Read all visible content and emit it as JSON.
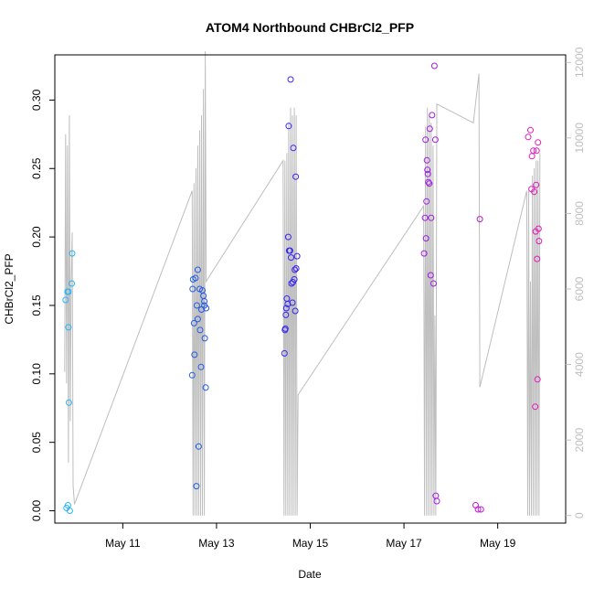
{
  "chart_data": {
    "type": "scatter",
    "title": "ATOM4 Northbound CHBrCl2_PFP",
    "xlabel": "Date",
    "ylabel": "CHBrCl2_PFP",
    "x_ticks": [
      {
        "day": 11,
        "label": "May 11"
      },
      {
        "day": 13,
        "label": "May 13"
      },
      {
        "day": 15,
        "label": "May 15"
      },
      {
        "day": 17,
        "label": "May 17"
      },
      {
        "day": 19,
        "label": "May 19"
      }
    ],
    "xlim": [
      9.55,
      20.45
    ],
    "ylim": [
      -0.009,
      0.333
    ],
    "y_ticks": [
      0.0,
      0.05,
      0.1,
      0.15,
      0.2,
      0.25,
      0.3
    ],
    "y_tick_labels": [
      "0.00",
      "0.05",
      "0.10",
      "0.15",
      "0.20",
      "0.25",
      "0.30"
    ],
    "secondary_axis": {
      "label": "",
      "ylim": [
        -200,
        12200
      ],
      "ticks": [
        0,
        2000,
        4000,
        6000,
        8000,
        10000,
        12000
      ],
      "tick_labels": [
        "0",
        "2000",
        "4000",
        "6000",
        "8000",
        "10000",
        "12000"
      ],
      "color": "#bebebe"
    },
    "colors": {
      "line": "#bebebe",
      "point_scale": [
        "#29b6f6",
        "#1e63e6",
        "#3a1ff0",
        "#9b1ce8",
        "#e51ab9"
      ]
    },
    "points": [
      [
        9.78,
        0.154
      ],
      [
        9.82,
        0.16
      ],
      [
        9.84,
        0.134
      ],
      [
        9.85,
        0.079
      ],
      [
        9.83,
        0.004
      ],
      [
        9.8,
        0.002
      ],
      [
        9.87,
        0.0
      ],
      [
        9.92,
        0.188
      ],
      [
        9.91,
        0.166
      ],
      [
        9.84,
        0.16
      ],
      [
        12.48,
        0.099
      ],
      [
        12.49,
        0.162
      ],
      [
        12.5,
        0.169
      ],
      [
        12.52,
        0.137
      ],
      [
        12.53,
        0.114
      ],
      [
        12.55,
        0.17
      ],
      [
        12.57,
        0.018
      ],
      [
        12.58,
        0.15
      ],
      [
        12.6,
        0.176
      ],
      [
        12.6,
        0.14
      ],
      [
        12.62,
        0.047
      ],
      [
        12.64,
        0.162
      ],
      [
        12.65,
        0.132
      ],
      [
        12.67,
        0.105
      ],
      [
        12.68,
        0.147
      ],
      [
        12.7,
        0.161
      ],
      [
        12.72,
        0.157
      ],
      [
        12.74,
        0.153
      ],
      [
        12.75,
        0.126
      ],
      [
        12.77,
        0.09
      ],
      [
        12.78,
        0.148
      ],
      [
        12.74,
        0.15
      ],
      [
        14.45,
        0.115
      ],
      [
        14.46,
        0.132
      ],
      [
        14.47,
        0.133
      ],
      [
        14.48,
        0.143
      ],
      [
        14.49,
        0.148
      ],
      [
        14.5,
        0.155
      ],
      [
        14.52,
        0.151
      ],
      [
        14.53,
        0.2
      ],
      [
        14.54,
        0.281
      ],
      [
        14.55,
        0.19
      ],
      [
        14.57,
        0.19
      ],
      [
        14.58,
        0.315
      ],
      [
        14.59,
        0.185
      ],
      [
        14.6,
        0.166
      ],
      [
        14.62,
        0.152
      ],
      [
        14.63,
        0.167
      ],
      [
        14.64,
        0.265
      ],
      [
        14.66,
        0.169
      ],
      [
        14.67,
        0.176
      ],
      [
        14.68,
        0.146
      ],
      [
        14.69,
        0.244
      ],
      [
        14.7,
        0.177
      ],
      [
        14.72,
        0.186
      ],
      [
        17.43,
        0.188
      ],
      [
        17.45,
        0.214
      ],
      [
        17.46,
        0.271
      ],
      [
        17.47,
        0.199
      ],
      [
        17.48,
        0.226
      ],
      [
        17.49,
        0.256
      ],
      [
        17.5,
        0.249
      ],
      [
        17.51,
        0.246
      ],
      [
        17.52,
        0.24
      ],
      [
        17.54,
        0.239
      ],
      [
        17.55,
        0.279
      ],
      [
        17.57,
        0.172
      ],
      [
        17.58,
        0.214
      ],
      [
        17.6,
        0.289
      ],
      [
        17.63,
        0.166
      ],
      [
        17.65,
        0.325
      ],
      [
        17.67,
        0.271
      ],
      [
        17.68,
        0.011
      ],
      [
        17.7,
        0.007
      ],
      [
        18.53,
        0.004
      ],
      [
        18.58,
        0.001
      ],
      [
        18.62,
        0.213
      ],
      [
        18.64,
        0.001
      ],
      [
        19.65,
        0.273
      ],
      [
        19.7,
        0.278
      ],
      [
        19.72,
        0.235
      ],
      [
        19.73,
        0.259
      ],
      [
        19.76,
        0.263
      ],
      [
        19.78,
        0.233
      ],
      [
        19.8,
        0.076
      ],
      [
        19.81,
        0.204
      ],
      [
        19.82,
        0.238
      ],
      [
        19.83,
        0.263
      ],
      [
        19.84,
        0.184
      ],
      [
        19.85,
        0.096
      ],
      [
        19.86,
        0.269
      ],
      [
        19.87,
        0.206
      ],
      [
        19.88,
        0.197
      ]
    ],
    "line_series": [
      [
        9.76,
        3800
      ],
      [
        9.78,
        10100
      ],
      [
        9.8,
        3500
      ],
      [
        9.82,
        9800
      ],
      [
        9.84,
        1400
      ],
      [
        9.86,
        10600
      ],
      [
        9.88,
        2500
      ],
      [
        9.9,
        6200
      ],
      [
        9.92,
        7500
      ],
      [
        9.94,
        800
      ],
      [
        9.97,
        300
      ],
      [
        12.48,
        8600
      ],
      [
        12.5,
        0
      ],
      [
        12.52,
        8800
      ],
      [
        12.54,
        0
      ],
      [
        12.56,
        9200
      ],
      [
        12.58,
        0
      ],
      [
        12.6,
        9800
      ],
      [
        12.62,
        0
      ],
      [
        12.64,
        10200
      ],
      [
        12.66,
        0
      ],
      [
        12.68,
        10600
      ],
      [
        12.7,
        0
      ],
      [
        12.72,
        11300
      ],
      [
        12.74,
        0
      ],
      [
        12.76,
        12300
      ],
      [
        12.78,
        6200
      ],
      [
        14.42,
        9400
      ],
      [
        14.44,
        0
      ],
      [
        14.46,
        9400
      ],
      [
        14.48,
        0
      ],
      [
        14.5,
        9600
      ],
      [
        14.52,
        0
      ],
      [
        14.54,
        10400
      ],
      [
        14.56,
        0
      ],
      [
        14.58,
        10800
      ],
      [
        14.6,
        0
      ],
      [
        14.62,
        10600
      ],
      [
        14.64,
        0
      ],
      [
        14.66,
        10800
      ],
      [
        14.68,
        0
      ],
      [
        14.7,
        10600
      ],
      [
        14.72,
        0
      ],
      [
        14.74,
        3200
      ],
      [
        17.42,
        8200
      ],
      [
        17.44,
        0
      ],
      [
        17.46,
        10300
      ],
      [
        17.48,
        0
      ],
      [
        17.5,
        10800
      ],
      [
        17.52,
        0
      ],
      [
        17.54,
        10600
      ],
      [
        17.56,
        0
      ],
      [
        17.58,
        10400
      ],
      [
        17.6,
        0
      ],
      [
        17.62,
        9800
      ],
      [
        17.64,
        0
      ],
      [
        17.66,
        5300
      ],
      [
        17.68,
        0
      ],
      [
        17.7,
        10900
      ],
      [
        18.48,
        10400
      ],
      [
        18.6,
        11700
      ],
      [
        18.62,
        3400
      ],
      [
        19.62,
        8600
      ],
      [
        19.64,
        0
      ],
      [
        19.66,
        8600
      ],
      [
        19.68,
        0
      ],
      [
        19.7,
        6200
      ],
      [
        19.72,
        0
      ],
      [
        19.74,
        9000
      ],
      [
        19.76,
        0
      ],
      [
        19.78,
        9200
      ],
      [
        19.8,
        0
      ],
      [
        19.82,
        9400
      ],
      [
        19.84,
        0
      ],
      [
        19.86,
        9400
      ],
      [
        19.88,
        0
      ],
      [
        19.9,
        9600
      ]
    ]
  }
}
